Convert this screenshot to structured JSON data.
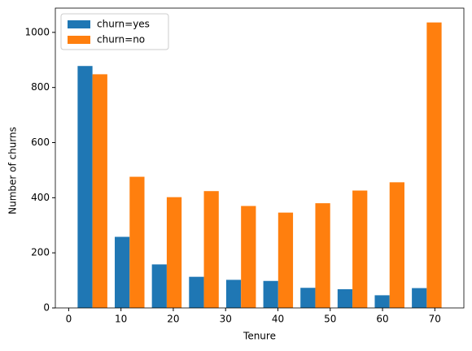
{
  "chart_data": {
    "type": "histogram",
    "xlabel": "Tenure",
    "ylabel": "Number of churns",
    "bins": [
      1,
      8.1,
      15.2,
      22.3,
      29.4,
      36.5,
      43.6,
      50.7,
      57.8,
      64.9,
      72
    ],
    "series": [
      {
        "name": "churn=yes",
        "color": "#1f77b4",
        "values": [
          878,
          258,
          158,
          113,
          102,
          98,
          73,
          68,
          46,
          72
        ]
      },
      {
        "name": "churn=no",
        "color": "#ff7f0e",
        "values": [
          848,
          476,
          402,
          424,
          370,
          346,
          380,
          426,
          456,
          1036
        ]
      }
    ],
    "xlim": [
      -2.55,
      75.55
    ],
    "xticks": [
      0,
      10,
      20,
      30,
      40,
      50,
      60,
      70
    ],
    "ylim": [
      0,
      1088
    ],
    "yticks": [
      0,
      200,
      400,
      600,
      800,
      1000
    ],
    "legend": "upper left"
  }
}
